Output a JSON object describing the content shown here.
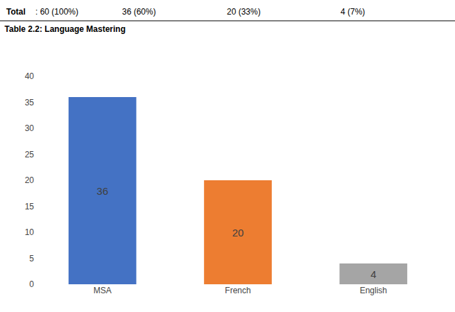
{
  "chart_data": {
    "type": "bar",
    "title": "Table 2.2: Language Mastering",
    "annotations": [
      "Total",
      ": 60 (100%)",
      "36 (60%)",
      "20 (33%)",
      "4 (7%)"
    ],
    "categories": [
      "MSA",
      "French",
      "English"
    ],
    "values": [
      36,
      20,
      4
    ],
    "colors": [
      "#4472C4",
      "#ED7D31",
      "#A5A5A5"
    ],
    "ylim": [
      0,
      40
    ],
    "yticks": [
      0,
      5,
      10,
      15,
      20,
      25,
      30,
      35,
      40
    ],
    "grid": false,
    "data_labels": true
  }
}
